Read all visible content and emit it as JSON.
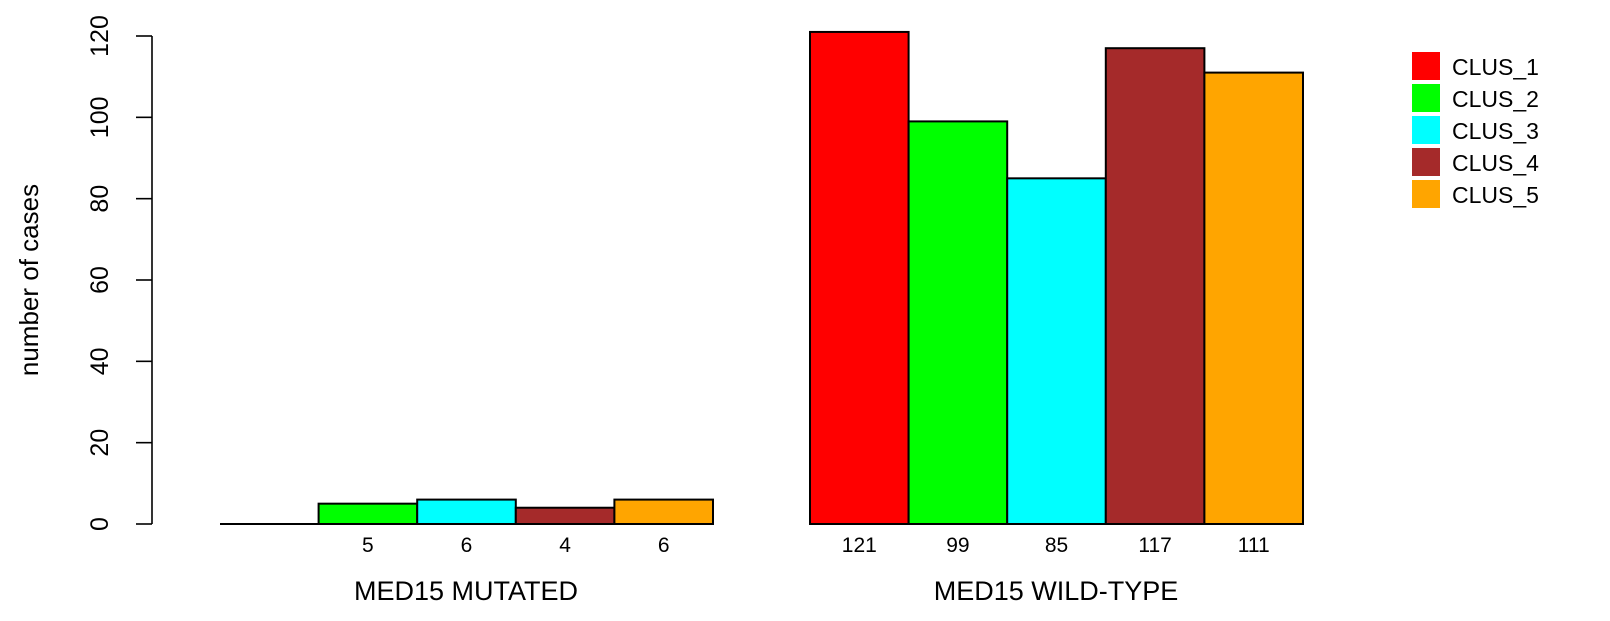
{
  "chart_data": {
    "type": "bar",
    "layout": "grouped",
    "ylabel": "number of cases",
    "ylim": [
      0,
      120
    ],
    "yticks": [
      0,
      20,
      40,
      60,
      80,
      100,
      120
    ],
    "categories": [
      "MED15 MUTATED",
      "MED15 WILD-TYPE"
    ],
    "series": [
      {
        "name": "CLUS_1",
        "color": "#ff0000",
        "values": [
          0,
          121
        ],
        "labels": [
          "",
          "121"
        ]
      },
      {
        "name": "CLUS_2",
        "color": "#00ff00",
        "values": [
          5,
          99
        ],
        "labels": [
          "5",
          "99"
        ]
      },
      {
        "name": "CLUS_3",
        "color": "#00ffff",
        "values": [
          6,
          85
        ],
        "labels": [
          "6",
          "85"
        ]
      },
      {
        "name": "CLUS_4",
        "color": "#a52a2a",
        "values": [
          4,
          117
        ],
        "labels": [
          "4",
          "117"
        ]
      },
      {
        "name": "CLUS_5",
        "color": "#ffa500",
        "values": [
          6,
          111
        ],
        "labels": [
          "6",
          "111"
        ]
      }
    ],
    "legend_position": "top-right",
    "grid": false
  }
}
